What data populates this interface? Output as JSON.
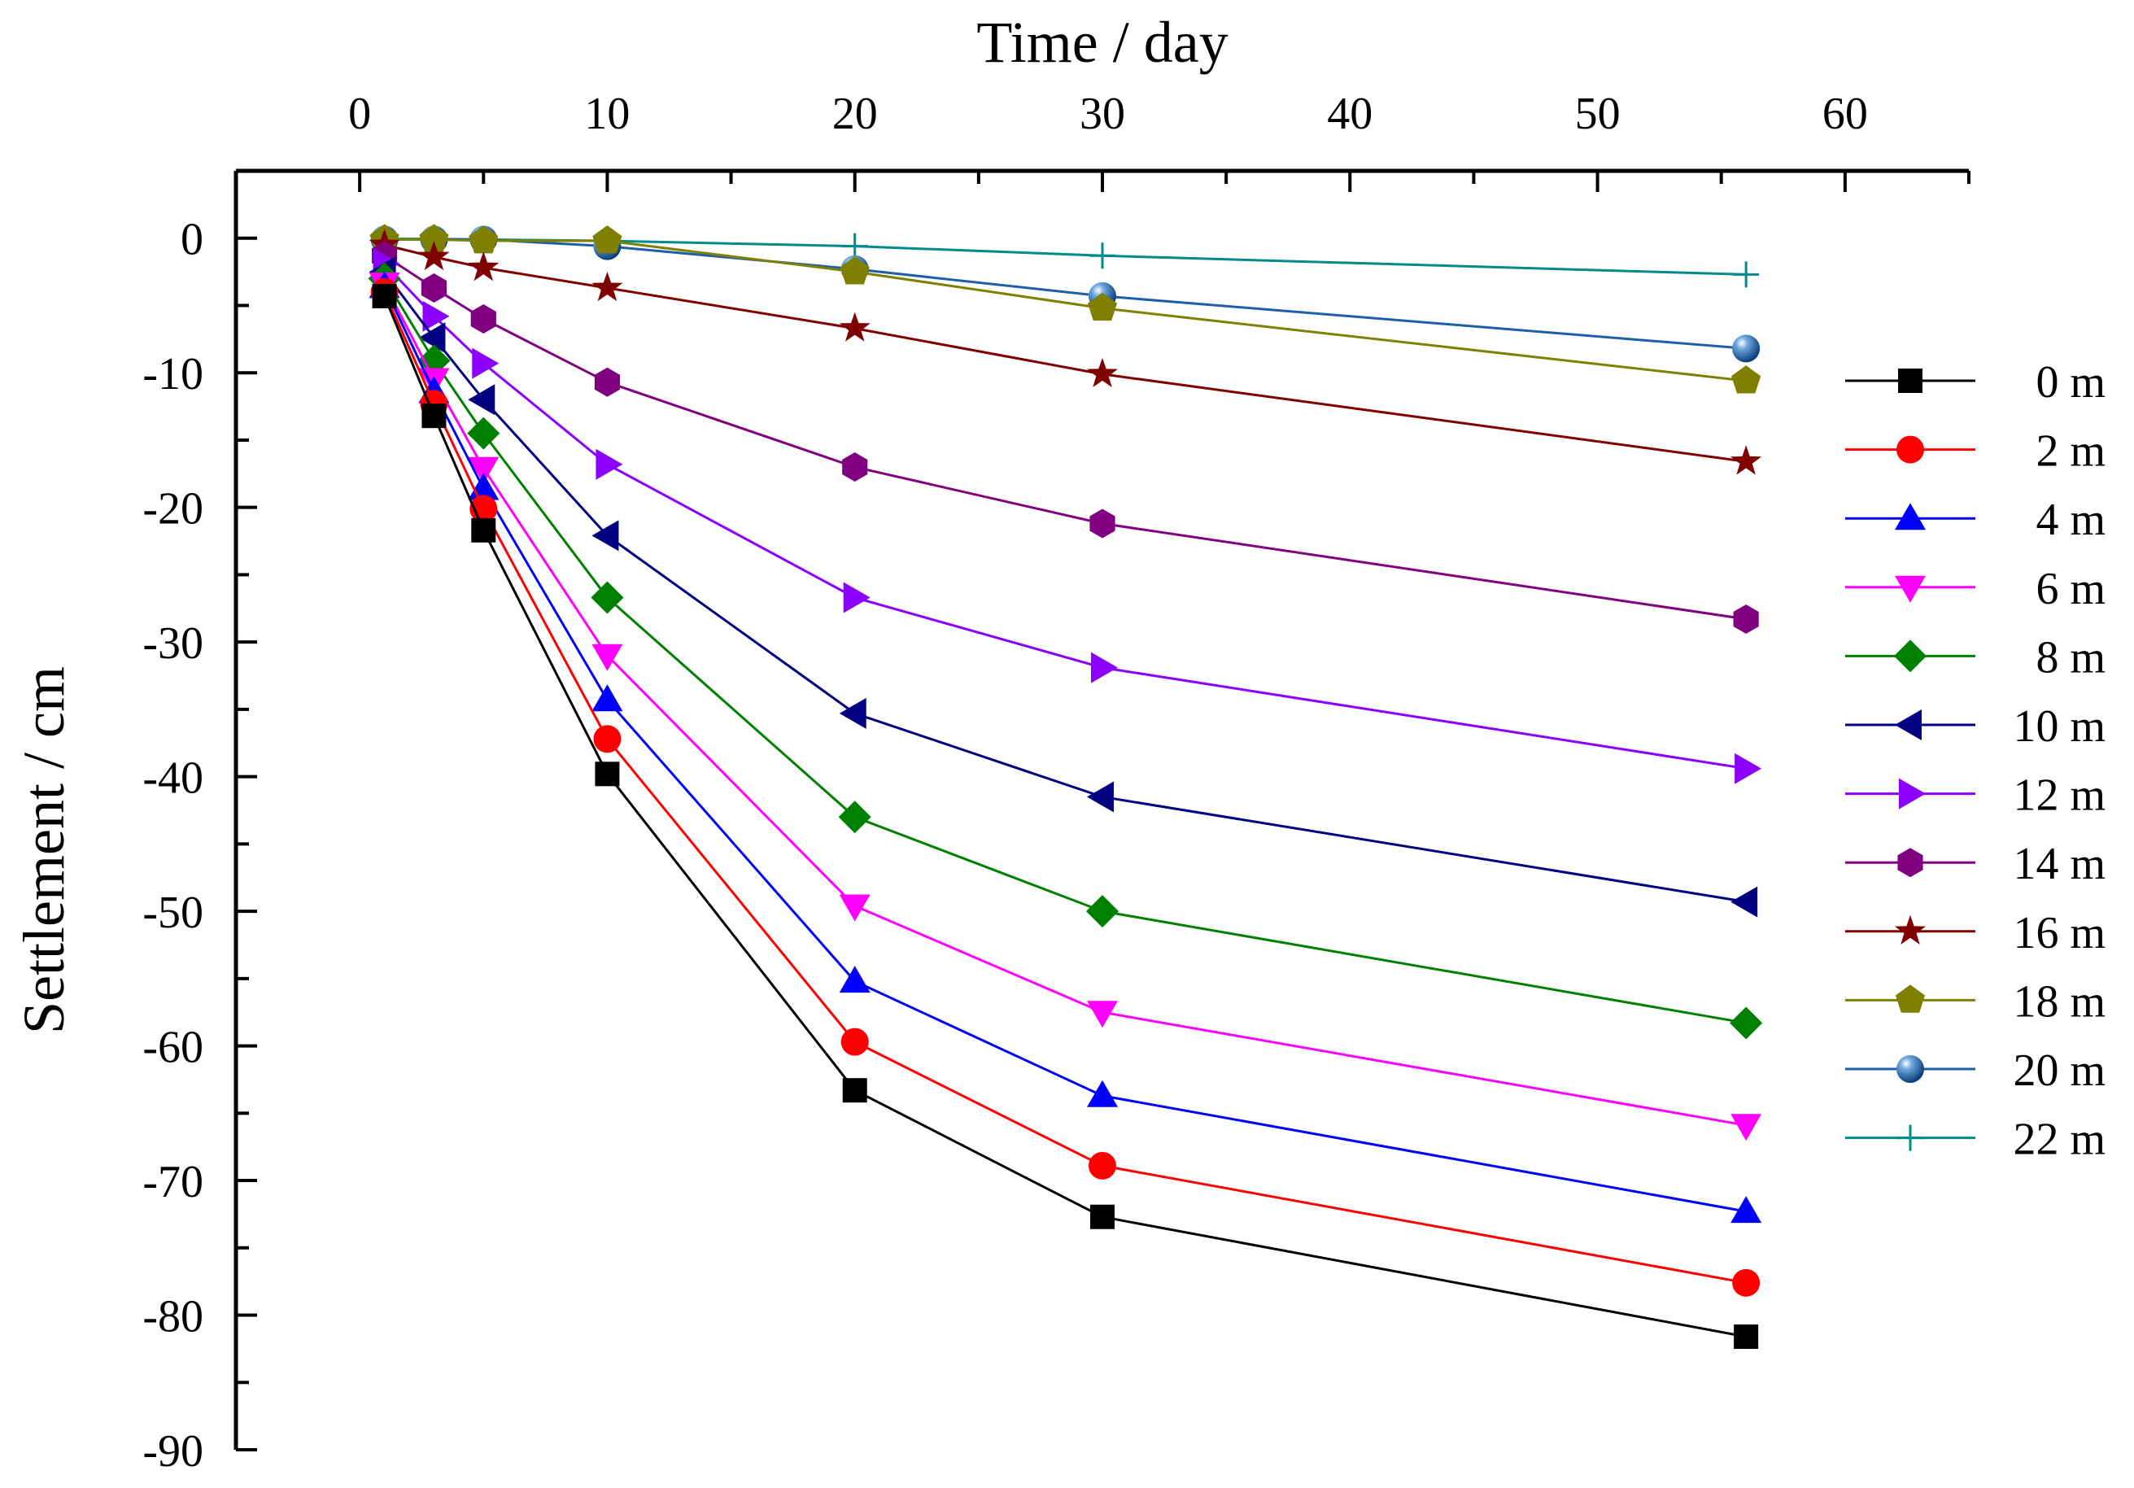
{
  "chart_data": {
    "type": "line",
    "title": "",
    "xlabel": "Time / day",
    "ylabel": "Settlement / cm",
    "xlim": [
      -5,
      65
    ],
    "ylim": [
      -90,
      5
    ],
    "xticks": [
      0,
      10,
      20,
      30,
      40,
      50,
      60
    ],
    "yticks": [
      0,
      -10,
      -20,
      -30,
      -40,
      -50,
      -60,
      -70,
      -80,
      -90
    ],
    "x_axis_position": "top",
    "legend_position": "right",
    "x": [
      1,
      3,
      5,
      10,
      20,
      30,
      56
    ],
    "series": [
      {
        "name": "0 m",
        "color": "#000000",
        "marker": "square",
        "values": [
          -4.3,
          -13.2,
          -21.7,
          -39.8,
          -63.3,
          -72.7,
          -81.6
        ]
      },
      {
        "name": "2 m",
        "color": "#FF0000",
        "marker": "circle",
        "values": [
          -4.0,
          -12.3,
          -20.1,
          -37.2,
          -59.7,
          -68.9,
          -77.6
        ]
      },
      {
        "name": "4 m",
        "color": "#0000FF",
        "marker": "triangle-up",
        "values": [
          -3.6,
          -11.4,
          -18.6,
          -34.3,
          -55.2,
          -63.7,
          -72.3
        ]
      },
      {
        "name": "6 m",
        "color": "#FF00FF",
        "marker": "triangle-down",
        "values": [
          -3.4,
          -10.5,
          -17.1,
          -31.0,
          -49.6,
          -57.5,
          -65.9
        ]
      },
      {
        "name": "8 m",
        "color": "#008000",
        "marker": "diamond",
        "values": [
          -3.0,
          -9.1,
          -14.5,
          -26.7,
          -43.0,
          -50.0,
          -58.3
        ]
      },
      {
        "name": "10 m",
        "color": "#000080",
        "marker": "triangle-left",
        "values": [
          -2.5,
          -7.4,
          -12.0,
          -22.1,
          -35.3,
          -41.5,
          -49.3
        ]
      },
      {
        "name": "12 m",
        "color": "#8B00FF",
        "marker": "triangle-right",
        "values": [
          -1.9,
          -5.8,
          -9.3,
          -16.8,
          -26.7,
          -31.9,
          -39.4
        ]
      },
      {
        "name": "14 m",
        "color": "#800080",
        "marker": "hexagon",
        "values": [
          -1.3,
          -3.7,
          -6.0,
          -10.7,
          -17.0,
          -21.2,
          -28.3
        ]
      },
      {
        "name": "16 m",
        "color": "#800000",
        "marker": "star",
        "values": [
          -0.5,
          -1.4,
          -2.2,
          -3.7,
          -6.7,
          -10.1,
          -16.6
        ]
      },
      {
        "name": "18 m",
        "color": "#808000",
        "marker": "pentagon",
        "values": [
          -0.1,
          -0.1,
          -0.2,
          -0.2,
          -2.5,
          -5.2,
          -10.6
        ]
      },
      {
        "name": "20 m",
        "color": "#1F5FA8",
        "marker": "sphere",
        "values": [
          -0.1,
          -0.1,
          -0.1,
          -0.6,
          -2.3,
          -4.3,
          -8.2
        ]
      },
      {
        "name": "22 m",
        "color": "#008B8B",
        "marker": "plus",
        "values": [
          -0.05,
          -0.05,
          -0.1,
          -0.2,
          -0.6,
          -1.3,
          -2.7
        ]
      }
    ]
  }
}
